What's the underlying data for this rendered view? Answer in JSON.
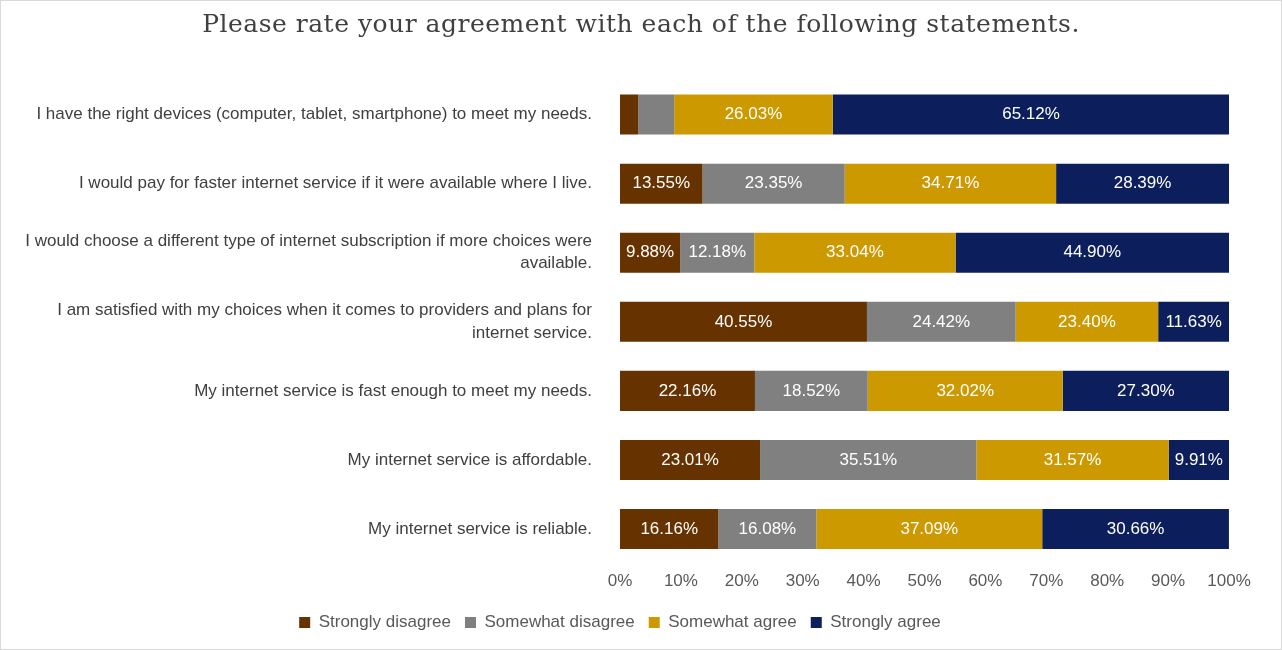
{
  "chart_data": {
    "type": "bar",
    "orientation": "horizontal",
    "stacked": true,
    "title": "Please rate your agreement with each of the following statements.",
    "categories": [
      "I have the right devices (computer, tablet, smartphone) to meet my needs.",
      "I would pay for faster internet service if it were available where I live.",
      "I would choose a different type of internet subscription if more choices were available.",
      "I am satisfied with my choices when it comes to providers and plans for internet service.",
      "My internet service is fast enough to meet my needs.",
      "My internet service is affordable.",
      "My internet service is reliable."
    ],
    "series": [
      {
        "name": "Strongly disagree",
        "color": "#663300",
        "values": [
          3.0,
          13.55,
          9.88,
          40.55,
          22.16,
          23.01,
          16.16
        ],
        "value_labels": [
          null,
          "13.55%",
          "9.88%",
          "40.55%",
          "22.16%",
          "23.01%",
          "16.16%"
        ]
      },
      {
        "name": "Somewhat disagree",
        "color": "#808080",
        "values": [
          5.9,
          23.35,
          12.18,
          24.42,
          18.52,
          35.51,
          16.08
        ],
        "value_labels": [
          null,
          "23.35%",
          "12.18%",
          "24.42%",
          "18.52%",
          "35.51%",
          "16.08%"
        ]
      },
      {
        "name": "Somewhat agree",
        "color": "#cc9900",
        "values": [
          26.03,
          34.71,
          33.04,
          23.4,
          32.02,
          31.57,
          37.09
        ],
        "value_labels": [
          "26.03%",
          "34.71%",
          "33.04%",
          "23.40%",
          "32.02%",
          "31.57%",
          "37.09%"
        ]
      },
      {
        "name": "Strongly agree",
        "color": "#0c1f5c",
        "values": [
          65.12,
          28.39,
          44.9,
          11.63,
          27.3,
          9.91,
          30.66
        ],
        "value_labels": [
          "65.12%",
          "28.39%",
          "44.90%",
          "11.63%",
          "27.30%",
          "9.91%",
          "30.66%"
        ]
      }
    ],
    "xlim": [
      0,
      100
    ],
    "xticks": [
      {
        "value": 0,
        "label": "0%"
      },
      {
        "value": 10,
        "label": "10%"
      },
      {
        "value": 20,
        "label": "20%"
      },
      {
        "value": 30,
        "label": "30%"
      },
      {
        "value": 40,
        "label": "40%"
      },
      {
        "value": 50,
        "label": "50%"
      },
      {
        "value": 60,
        "label": "60%"
      },
      {
        "value": 70,
        "label": "70%"
      },
      {
        "value": 80,
        "label": "80%"
      },
      {
        "value": 90,
        "label": "90%"
      },
      {
        "value": 100,
        "label": "100%"
      }
    ],
    "legend": "bottom",
    "grid": false
  }
}
